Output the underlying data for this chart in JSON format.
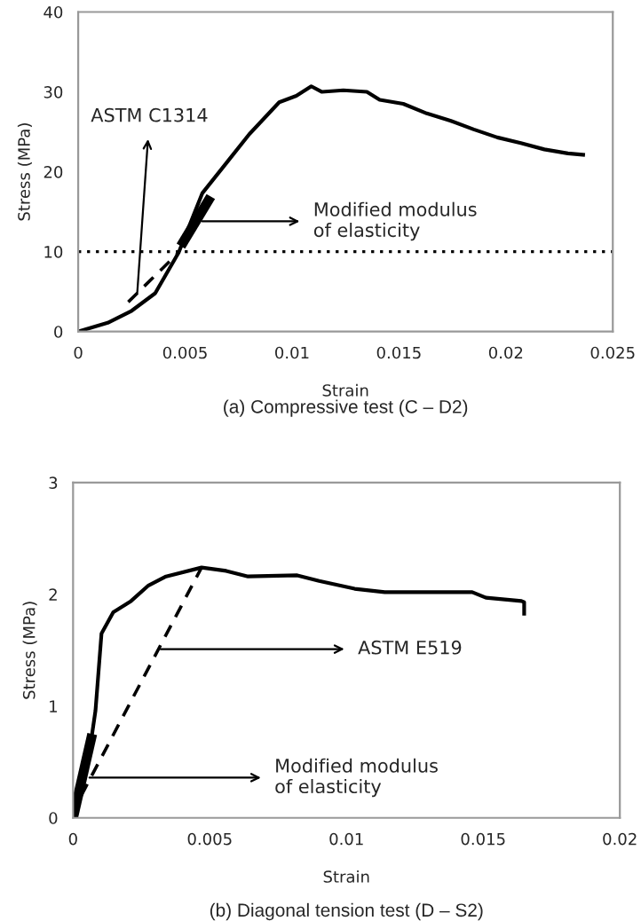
{
  "chart_data": [
    {
      "type": "line",
      "title": "(a) Compressive test (C – D2)",
      "xlabel": "Strain",
      "ylabel": "Stress (MPa)",
      "xlim": [
        0,
        0.025
      ],
      "ylim": [
        0,
        40
      ],
      "xticks": [
        0,
        0.005,
        0.01,
        0.015,
        0.02,
        0.025
      ],
      "yticks": [
        0,
        10,
        20,
        30,
        40
      ],
      "grid": false,
      "legend": false,
      "marker": "none",
      "series": [
        {
          "color": "#000000",
          "line_style": "solid",
          "x": [
            0,
            0.00138,
            0.0025,
            0.0036,
            0.0047,
            0.0058,
            0.0069,
            0.008,
            0.0094,
            0.0102,
            0.0109,
            0.0114,
            0.0124,
            0.0135,
            0.0141,
            0.0152,
            0.0163,
            0.0174,
            0.0185,
            0.0196,
            0.0207,
            0.0218,
            0.0229,
            0.0237
          ],
          "values": [
            0,
            1.1,
            2.6,
            4.8,
            9.9,
            17.3,
            21,
            24.7,
            28.7,
            29.5,
            30.7,
            30,
            30.2,
            30,
            29,
            28.5,
            27.3,
            26.4,
            25.3,
            24.3,
            23.6,
            22.8,
            22.3,
            22.1
          ]
        },
        {
          "color": "#000000",
          "line_style": "dashed",
          "x": [
            0.00234,
            0.0047
          ],
          "values": [
            3.7,
            9.9
          ]
        },
        {
          "color": "#000000",
          "line_style": "solid",
          "x": [
            0.0048,
            0.0062
          ],
          "values": [
            10.7,
            16.9
          ]
        }
      ],
      "ref_lines": [
        {
          "axis": "y",
          "value": 10,
          "line_style": "dotted",
          "color": "#000000"
        }
      ],
      "annotations": [
        {
          "text": "ASTM C1314",
          "x": 0.00276,
          "y": 4.8
        },
        {
          "text": "Modified modulus\nof elasticity",
          "x": 0.0058,
          "y": 13.8
        }
      ]
    },
    {
      "type": "line",
      "title": "(b) Diagonal tension test (D – S2)",
      "xlabel": "Strain",
      "ylabel": "Stress (MPa)",
      "xlim": [
        0,
        0.02
      ],
      "ylim": [
        0,
        3
      ],
      "xticks": [
        0,
        0.005,
        0.01,
        0.015,
        0.02
      ],
      "yticks": [
        0,
        1,
        2,
        3
      ],
      "grid": false,
      "legend": false,
      "marker": "none",
      "series": [
        {
          "color": "#000000",
          "line_style": "solid",
          "x": [
            0,
            0.0006,
            0.00082,
            0.00104,
            0.00147,
            0.00212,
            0.00276,
            0.0034,
            0.0047,
            0.0056,
            0.0064,
            0.0082,
            0.009,
            0.0103,
            0.0114,
            0.0129,
            0.0146,
            0.0151,
            0.0164,
            0.0165,
            0.0165
          ],
          "values": [
            0,
            0.59,
            0.96,
            1.65,
            1.84,
            1.94,
            2.08,
            2.16,
            2.24,
            2.21,
            2.16,
            2.17,
            2.12,
            2.05,
            2.02,
            2.02,
            2.02,
            1.97,
            1.94,
            1.93,
            1.81
          ]
        },
        {
          "color": "#000000",
          "line_style": "dashed",
          "x": [
            0.0003,
            0.0047
          ],
          "values": [
            0.2,
            2.24
          ]
        },
        {
          "color": "#000000",
          "line_style": "solid",
          "x": [
            0,
            0.0007
          ],
          "values": [
            0,
            0.75
          ]
        }
      ],
      "annotations": [
        {
          "text": "ASTM E519",
          "x": 0.0032,
          "y": 1.51
        },
        {
          "text": "Modified modulus\nof elasticity",
          "x": 0.0006,
          "y": 0.36
        }
      ]
    }
  ]
}
